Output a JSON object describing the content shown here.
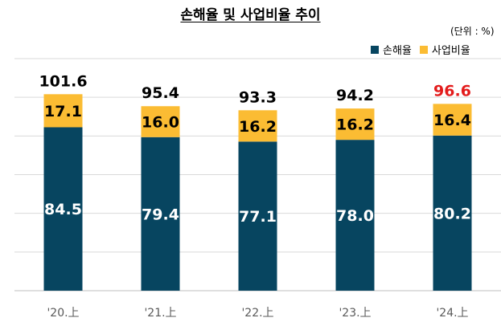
{
  "title": "손해율 및 사업비율 추이",
  "unit": "(단위 : %)",
  "colors": {
    "loss": "#074560",
    "expense": "#FBBC33",
    "grid": "#d9d9d9",
    "highlight": "#e31b1b"
  },
  "chart_data": {
    "type": "bar",
    "stacked": true,
    "title": "손해율 및 사업비율 추이",
    "categories": [
      "'20.上",
      "'21.上",
      "'22.上",
      "'23.上",
      "'24.上"
    ],
    "series": [
      {
        "name": "손해율",
        "values": [
          84.5,
          79.4,
          77.1,
          78.0,
          80.2
        ]
      },
      {
        "name": "사업비율",
        "values": [
          17.1,
          16.0,
          16.2,
          16.2,
          16.4
        ]
      }
    ],
    "series_labels": [
      [
        "84.5",
        "79.4",
        "77.1",
        "78.0",
        "80.2"
      ],
      [
        "17.1",
        "16.0",
        "16.2",
        "16.2",
        "16.4"
      ]
    ],
    "totals": [
      101.6,
      95.4,
      93.3,
      94.2,
      96.6
    ],
    "total_labels": [
      "101.6",
      "95.4",
      "93.3",
      "94.2",
      "96.6"
    ],
    "highlight_total_index": 4,
    "ylim": [
      0,
      120
    ],
    "grid": true,
    "legend_position": "top-right"
  }
}
